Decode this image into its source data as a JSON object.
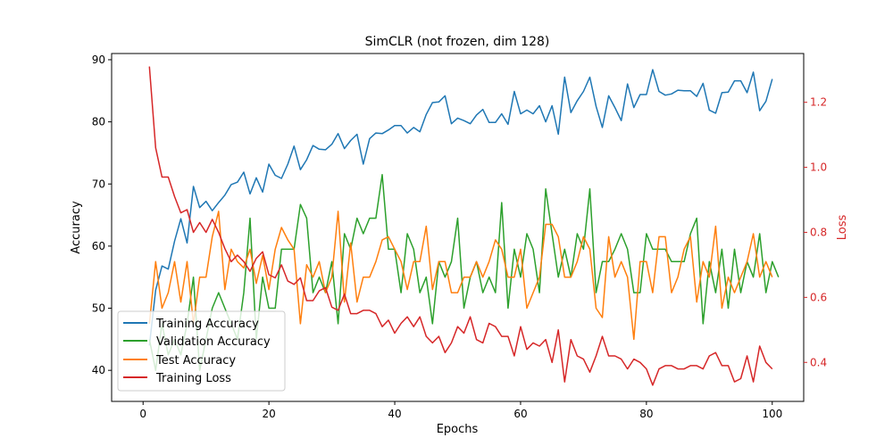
{
  "chart_data": {
    "type": "line",
    "title": "SimCLR (not frozen, dim 128)",
    "xlabel": "Epochs",
    "ylabel": "Accuracy",
    "y2label": "Loss",
    "xlim": [
      -5,
      105
    ],
    "ylim": [
      35,
      91
    ],
    "y2lim": [
      0.28,
      1.35
    ],
    "xticks": [
      0,
      20,
      40,
      60,
      80,
      100
    ],
    "yticks": [
      40,
      50,
      60,
      70,
      80,
      90
    ],
    "y2ticks": [
      0.4,
      0.6,
      0.8,
      1.0,
      1.2
    ],
    "grid": false,
    "legend_position": "lower-left",
    "colors": {
      "training_accuracy": "#1f77b4",
      "validation_accuracy": "#2ca02c",
      "test_accuracy": "#ff7f0e",
      "training_loss": "#d62728",
      "loss_axis": "#d62728"
    },
    "series": [
      {
        "name": "Training Accuracy",
        "axis": "left",
        "color": "#1f77b4",
        "values": [
          44.0,
          52.9,
          56.8,
          56.3,
          60.8,
          64.4,
          60.5,
          69.6,
          66.2,
          67.2,
          65.7,
          67.0,
          68.2,
          69.9,
          70.3,
          71.9,
          68.4,
          71.0,
          68.7,
          73.2,
          71.4,
          70.9,
          73.2,
          76.1,
          72.3,
          73.9,
          76.2,
          75.6,
          75.5,
          76.4,
          78.1,
          75.7,
          77.0,
          78.0,
          73.2,
          77.3,
          78.2,
          78.1,
          78.7,
          79.4,
          79.4,
          78.2,
          79.1,
          78.4,
          81.2,
          83.1,
          83.2,
          84.2,
          79.7,
          80.6,
          80.2,
          79.7,
          81.1,
          82.0,
          79.9,
          79.9,
          81.3,
          79.6,
          84.9,
          81.3,
          81.9,
          81.3,
          82.6,
          80.0,
          82.6,
          78.0,
          87.2,
          81.5,
          83.4,
          84.9,
          87.2,
          82.5,
          79.1,
          84.2,
          82.3,
          80.2,
          86.1,
          82.3,
          84.4,
          84.4,
          88.4,
          84.9,
          84.3,
          84.5,
          85.1,
          85.0,
          85.0,
          84.1,
          86.2,
          81.9,
          81.4,
          84.7,
          84.8,
          86.6,
          86.6,
          84.7,
          88.0,
          81.8,
          83.3,
          86.9
        ]
      },
      {
        "name": "Validation Accuracy",
        "axis": "left",
        "color": "#2ca02c",
        "values": [
          45.0,
          40.0,
          47.5,
          42.5,
          45.0,
          42.5,
          47.5,
          55.0,
          40.0,
          45.0,
          50.0,
          52.5,
          50.0,
          47.5,
          45.0,
          52.5,
          64.5,
          45.0,
          55.0,
          50.0,
          50.0,
          59.5,
          59.5,
          59.5,
          66.7,
          64.5,
          52.5,
          55.0,
          52.5,
          57.5,
          47.5,
          62.0,
          59.5,
          64.5,
          62.0,
          64.5,
          64.5,
          71.5,
          59.5,
          59.5,
          52.5,
          62.0,
          59.5,
          52.5,
          55.0,
          47.5,
          57.5,
          55.0,
          57.5,
          64.5,
          50.0,
          55.0,
          57.5,
          52.5,
          55.0,
          52.5,
          67.0,
          50.0,
          59.5,
          55.0,
          62.0,
          59.5,
          52.5,
          69.2,
          62.0,
          55.0,
          59.5,
          55.0,
          62.0,
          59.5,
          69.2,
          52.5,
          57.5,
          57.5,
          59.5,
          62.0,
          59.5,
          52.5,
          52.5,
          62.0,
          59.5,
          59.5,
          59.5,
          57.5,
          57.5,
          57.5,
          62.0,
          64.5,
          47.5,
          57.5,
          52.5,
          59.5,
          50.0,
          59.5,
          52.5,
          57.5,
          55.0,
          62.0,
          52.5,
          57.5,
          55.0
        ]
      },
      {
        "name": "Test Accuracy",
        "axis": "left",
        "color": "#ff7f0e",
        "values": [
          47.5,
          57.5,
          50.0,
          52.5,
          57.5,
          51.0,
          57.5,
          47.5,
          55.0,
          55.0,
          61.5,
          65.6,
          53.0,
          59.5,
          57.5,
          56.5,
          59.5,
          54.0,
          58.5,
          53.0,
          59.5,
          63.0,
          61.0,
          59.5,
          47.5,
          57.0,
          55.0,
          57.5,
          52.5,
          55.0,
          65.6,
          51.0,
          60.5,
          51.0,
          55.0,
          55.0,
          57.5,
          61.0,
          61.5,
          59.5,
          57.5,
          53.0,
          57.5,
          57.5,
          63.2,
          53.0,
          57.5,
          57.5,
          52.5,
          52.5,
          55.0,
          55.0,
          57.5,
          55.0,
          57.5,
          61.0,
          59.5,
          55.0,
          55.0,
          59.5,
          50.0,
          52.5,
          55.0,
          63.5,
          63.5,
          61.5,
          55.0,
          55.0,
          57.5,
          61.5,
          59.5,
          50.0,
          48.5,
          61.5,
          55.0,
          57.5,
          55.0,
          45.0,
          57.5,
          57.5,
          52.5,
          61.5,
          61.5,
          52.5,
          55.0,
          59.5,
          61.5,
          51.0,
          57.5,
          55.0,
          63.2,
          50.0,
          55.0,
          52.5,
          55.0,
          57.5,
          62.0,
          55.0,
          57.5,
          55.0
        ]
      },
      {
        "name": "Training Loss",
        "axis": "right",
        "color": "#d62728",
        "values": [
          1.31,
          1.06,
          0.97,
          0.97,
          0.91,
          0.86,
          0.87,
          0.8,
          0.83,
          0.8,
          0.84,
          0.8,
          0.75,
          0.71,
          0.73,
          0.71,
          0.68,
          0.72,
          0.74,
          0.67,
          0.66,
          0.7,
          0.65,
          0.64,
          0.66,
          0.59,
          0.59,
          0.62,
          0.63,
          0.57,
          0.56,
          0.61,
          0.55,
          0.55,
          0.56,
          0.56,
          0.55,
          0.51,
          0.53,
          0.49,
          0.52,
          0.54,
          0.51,
          0.54,
          0.48,
          0.46,
          0.48,
          0.43,
          0.46,
          0.51,
          0.49,
          0.54,
          0.47,
          0.46,
          0.52,
          0.51,
          0.48,
          0.48,
          0.42,
          0.51,
          0.44,
          0.46,
          0.45,
          0.47,
          0.4,
          0.5,
          0.34,
          0.47,
          0.42,
          0.41,
          0.37,
          0.42,
          0.48,
          0.42,
          0.42,
          0.41,
          0.38,
          0.41,
          0.4,
          0.38,
          0.33,
          0.38,
          0.39,
          0.39,
          0.38,
          0.38,
          0.39,
          0.39,
          0.38,
          0.42,
          0.43,
          0.39,
          0.39,
          0.34,
          0.35,
          0.42,
          0.34,
          0.45,
          0.4,
          0.38
        ]
      }
    ]
  }
}
